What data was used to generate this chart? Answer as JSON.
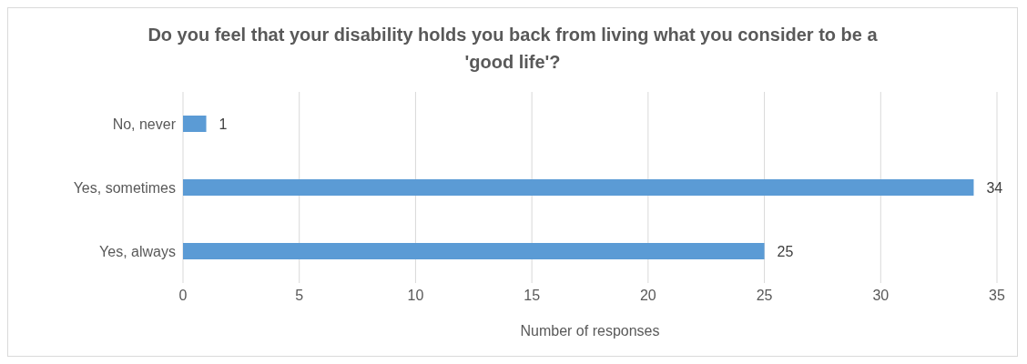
{
  "chart_data": {
    "type": "bar",
    "orientation": "horizontal",
    "title": "Do you feel that your disability holds you back from living what you consider to be a 'good life'?",
    "xlabel": "Number of responses",
    "categories": [
      "No, never",
      "Yes, sometimes",
      "Yes, always"
    ],
    "values": [
      1,
      34,
      25
    ],
    "color": "#5b9bd5",
    "xlim": [
      0,
      35
    ],
    "xticks": [
      0,
      5,
      10,
      15,
      20,
      25,
      30,
      35
    ],
    "grid": "x",
    "data_labels": true,
    "legend": false
  }
}
